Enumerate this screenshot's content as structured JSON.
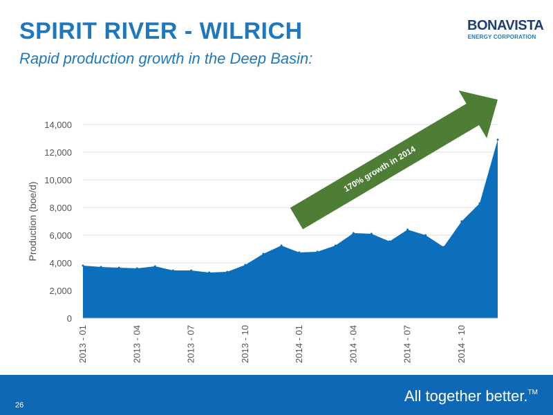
{
  "slide": {
    "title": "SPIRIT RIVER - WILRICH",
    "subtitle": "Rapid production growth in the Deep Basin:",
    "page_number": "26"
  },
  "logo": {
    "name": "BONAVISTA",
    "tagline": "ENERGY CORPORATION"
  },
  "footer": {
    "tagline": "All together better.",
    "trademark": "TM"
  },
  "colors": {
    "title": "#1d78c1",
    "area_fill": "#0b6fbb",
    "arrow": "#4e7e35",
    "footer_band": "#0f68b5",
    "gridline": "#dddddd"
  },
  "chart_data": {
    "type": "area",
    "ylabel": "Production (boe/d)",
    "xlabel": "",
    "ylim": [
      0,
      14000
    ],
    "yticks": [
      "0",
      "2,000",
      "4,000",
      "6,000",
      "8,000",
      "10,000",
      "12,000",
      "14,000"
    ],
    "ytick_values": [
      0,
      2000,
      4000,
      6000,
      8000,
      10000,
      12000,
      14000
    ],
    "grid": "horizontal",
    "categories": [
      "2013 - 01",
      "2013 - 02",
      "2013 - 03",
      "2013 - 04",
      "2013 - 05",
      "2013 - 06",
      "2013 - 07",
      "2013 - 08",
      "2013 - 09",
      "2013 - 10",
      "2013 - 11",
      "2013 - 12",
      "2014 - 01",
      "2014 - 02",
      "2014 - 03",
      "2014 - 04",
      "2014 - 05",
      "2014 - 06",
      "2014 - 07",
      "2014 - 08",
      "2014 - 09",
      "2014 - 10",
      "2014 - 11",
      "2014 - 12"
    ],
    "xtick_labels": [
      "2013 - 01",
      "2013 - 04",
      "2013 - 07",
      "2013 - 10",
      "2014 - 01",
      "2014 - 04",
      "2014 - 07",
      "2014 - 10"
    ],
    "values": [
      3800,
      3700,
      3650,
      3600,
      3750,
      3450,
      3450,
      3300,
      3350,
      3850,
      4650,
      5250,
      4750,
      4800,
      5250,
      6150,
      6100,
      5550,
      6400,
      6000,
      5150,
      7000,
      8300,
      12900
    ],
    "annotation": {
      "text": "170% growth in 2014",
      "start": [
        "2013 - 12",
        7200
      ],
      "end": [
        "2014 - 12",
        15800
      ]
    }
  }
}
